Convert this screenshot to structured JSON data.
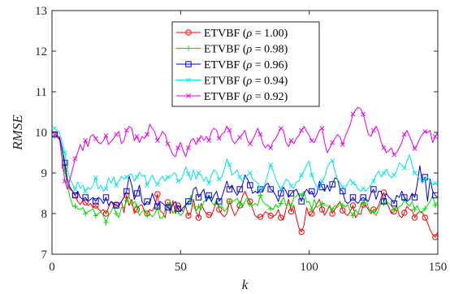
{
  "chart_data": {
    "type": "line",
    "xlabel": "k",
    "ylabel": "RMSE",
    "xlim": [
      0,
      150
    ],
    "ylim": [
      7,
      13
    ],
    "xticks": [
      0,
      50,
      100,
      150
    ],
    "yticks": [
      7,
      8,
      9,
      10,
      11,
      12,
      13
    ],
    "grid": false,
    "legend_position": "top-center",
    "x_start": 1,
    "x_step": 1,
    "series": [
      {
        "name": "ETVBF (ρ = 1.00)",
        "label_prefix": "ETVBF (",
        "label_symbol": "ρ",
        "label_suffix": " = 1.00)",
        "color": "#ff0000",
        "marker": "circle",
        "values": [
          9.95,
          9.93,
          9.88,
          9.55,
          9.15,
          8.72,
          8.6,
          8.55,
          8.45,
          8.3,
          8.22,
          8.33,
          8.28,
          8.2,
          8.25,
          8.14,
          8.2,
          8.12,
          8.05,
          8.1,
          8.0,
          8.15,
          8.3,
          8.2,
          8.22,
          8.18,
          8.3,
          8.02,
          8.45,
          8.2,
          8.35,
          8.0,
          8.1,
          8.2,
          8.22,
          8.04,
          8.0,
          8.1,
          8.06,
          8.2,
          8.48,
          8.07,
          8.02,
          7.9,
          8.28,
          8.0,
          8.32,
          8.0,
          8.2,
          8.12,
          8.05,
          8.18,
          7.95,
          8.02,
          8.35,
          8.06,
          7.9,
          8.25,
          8.1,
          8.0,
          7.97,
          7.95,
          8.12,
          8.32,
          8.1,
          7.98,
          7.92,
          8.0,
          8.3,
          8.12,
          7.95,
          8.05,
          8.2,
          8.42,
          8.55,
          8.4,
          8.3,
          8.12,
          7.95,
          7.9,
          7.92,
          7.95,
          8.05,
          8.0,
          7.95,
          7.93,
          7.97,
          8.1,
          7.9,
          7.85,
          8.12,
          8.35,
          8.05,
          8.2,
          7.9,
          7.65,
          7.55,
          7.72,
          8.15,
          7.95,
          8.0,
          8.12,
          8.25,
          8.35,
          8.1,
          7.96,
          8.08,
          8.2,
          8.0,
          8.1,
          8.22,
          8.3,
          8.08,
          8.0,
          7.95,
          8.06,
          8.2,
          7.9,
          8.0,
          7.98,
          8.22,
          8.2,
          8.1,
          8.0,
          8.1,
          8.08,
          8.2,
          8.4,
          8.52,
          8.3,
          8.15,
          8.0,
          8.05,
          8.2,
          7.95,
          7.9,
          8.02,
          8.18,
          8.1,
          8.08,
          7.9,
          8.0,
          8.05,
          8.02,
          7.9,
          7.78,
          7.6,
          7.48,
          7.42,
          7.55
        ]
      },
      {
        "name": "ETVBF (ρ = 0.98)",
        "label_prefix": "ETVBF (",
        "label_symbol": "ρ",
        "label_suffix": " = 0.98)",
        "color": "#00dd00",
        "marker": "plus",
        "values": [
          9.9,
          9.88,
          9.82,
          9.5,
          9.05,
          8.7,
          8.4,
          8.2,
          8.18,
          8.12,
          8.1,
          8.15,
          8.0,
          8.05,
          8.08,
          8.12,
          7.95,
          8.0,
          8.05,
          7.95,
          7.78,
          7.95,
          8.05,
          8.2,
          8.0,
          7.9,
          8.15,
          8.15,
          8.32,
          8.42,
          8.2,
          8.3,
          8.18,
          7.95,
          8.05,
          8.1,
          7.95,
          8.0,
          7.92,
          8.0,
          8.15,
          7.88,
          7.9,
          8.08,
          8.2,
          8.3,
          8.0,
          8.12,
          8.05,
          7.95,
          8.02,
          8.25,
          8.25,
          8.45,
          8.2,
          8.05,
          8.18,
          8.1,
          8.3,
          8.32,
          8.42,
          8.3,
          8.2,
          8.35,
          8.15,
          8.2,
          8.05,
          8.12,
          8.3,
          8.3,
          8.32,
          8.38,
          8.25,
          8.15,
          8.3,
          8.4,
          8.22,
          8.2,
          8.25,
          8.2,
          8.45,
          8.3,
          8.22,
          8.2,
          8.12,
          8.1,
          8.22,
          8.15,
          8.25,
          8.4,
          8.2,
          8.25,
          8.2,
          8.4,
          8.42,
          8.5,
          8.45,
          8.55,
          8.28,
          8.3,
          8.1,
          8.35,
          8.15,
          8.2,
          8.25,
          8.2,
          8.2,
          8.15,
          8.1,
          8.2,
          8.15,
          8.28,
          8.2,
          8.16,
          8.22,
          8.05,
          7.95,
          8.1,
          8.0,
          8.2,
          8.25,
          8.4,
          8.15,
          8.05,
          8.05,
          7.95,
          8.1,
          8.28,
          8.25,
          8.3,
          8.25,
          8.2,
          8.1,
          8.05,
          8.18,
          8.2,
          8.35,
          8.25,
          8.18,
          8.3,
          8.1,
          8.2,
          8.05,
          8.05,
          8.12,
          8.2,
          8.3,
          8.45,
          8.2,
          8.3
        ]
      },
      {
        "name": "ETVBF (ρ = 0.96)",
        "label_prefix": "ETVBF (",
        "label_symbol": "ρ",
        "label_suffix": " = 0.96)",
        "color": "#0000dd",
        "marker": "square",
        "values": [
          9.95,
          9.9,
          9.85,
          9.6,
          9.25,
          8.85,
          8.65,
          8.55,
          8.45,
          8.55,
          8.4,
          8.35,
          8.4,
          8.3,
          8.35,
          8.4,
          8.3,
          8.4,
          8.35,
          8.25,
          8.4,
          8.2,
          8.3,
          8.25,
          8.2,
          8.2,
          8.3,
          8.4,
          8.55,
          8.92,
          8.7,
          8.35,
          8.5,
          8.7,
          8.3,
          8.2,
          8.3,
          8.25,
          8.5,
          8.32,
          8.18,
          8.3,
          8.25,
          8.2,
          8.15,
          8.1,
          8.22,
          8.3,
          8.12,
          8.05,
          8.15,
          8.2,
          8.3,
          8.3,
          8.6,
          8.65,
          8.4,
          8.5,
          8.6,
          8.3,
          8.45,
          8.3,
          8.45,
          8.55,
          8.3,
          8.4,
          8.6,
          8.8,
          8.6,
          8.7,
          8.55,
          8.45,
          8.6,
          8.7,
          8.95,
          8.85,
          8.7,
          8.5,
          8.55,
          8.5,
          8.6,
          8.55,
          8.7,
          8.75,
          8.6,
          8.55,
          8.45,
          8.3,
          8.5,
          8.65,
          8.55,
          8.4,
          8.5,
          8.55,
          8.6,
          8.45,
          8.3,
          8.5,
          8.6,
          8.5,
          8.55,
          8.4,
          8.5,
          8.8,
          8.65,
          8.55,
          8.7,
          8.55,
          8.72,
          8.88,
          8.85,
          8.6,
          8.55,
          8.3,
          8.25,
          8.3,
          8.4,
          8.3,
          8.25,
          8.35,
          8.4,
          8.35,
          8.3,
          8.5,
          8.6,
          8.35,
          8.55,
          8.55,
          8.3,
          8.5,
          8.4,
          8.35,
          8.25,
          8.45,
          8.4,
          8.55,
          8.4,
          8.3,
          8.35,
          8.5,
          8.4,
          8.72,
          9.18,
          8.75,
          8.9,
          8.3,
          8.85,
          8.55,
          8.45,
          8.4
        ]
      },
      {
        "name": "ETVBF (ρ = 0.94)",
        "label_prefix": "ETVBF (",
        "label_symbol": "ρ",
        "label_suffix": " = 0.94)",
        "color": "#00e5e5",
        "marker": "x",
        "values": [
          10.1,
          10.05,
          9.98,
          9.75,
          9.5,
          9.1,
          8.85,
          8.72,
          8.6,
          8.78,
          8.62,
          8.7,
          8.55,
          8.65,
          8.6,
          8.7,
          8.88,
          8.6,
          8.7,
          8.55,
          8.62,
          8.88,
          8.75,
          8.9,
          8.7,
          8.8,
          8.92,
          8.85,
          8.9,
          8.95,
          8.98,
          8.8,
          8.9,
          9.02,
          8.92,
          8.95,
          8.7,
          8.82,
          8.95,
          8.8,
          8.72,
          8.85,
          8.92,
          8.8,
          8.9,
          8.9,
          8.98,
          9.0,
          8.8,
          8.82,
          8.95,
          9.15,
          8.98,
          8.82,
          9.08,
          8.85,
          9.0,
          8.95,
          8.8,
          8.9,
          8.75,
          8.95,
          9.08,
          9.02,
          8.85,
          8.9,
          9.1,
          9.35,
          9.2,
          8.95,
          9.0,
          9.08,
          8.9,
          8.8,
          8.85,
          8.95,
          9.0,
          8.85,
          8.8,
          8.75,
          8.62,
          8.6,
          8.75,
          9.0,
          9.2,
          9.05,
          8.85,
          8.72,
          8.6,
          8.72,
          8.85,
          8.8,
          8.68,
          8.62,
          8.78,
          8.8,
          8.95,
          9.05,
          9.2,
          9.3,
          8.95,
          8.78,
          8.65,
          8.6,
          8.8,
          8.9,
          9.15,
          9.25,
          9.3,
          9.05,
          8.85,
          8.75,
          8.65,
          8.62,
          8.75,
          8.85,
          8.75,
          8.72,
          8.6,
          8.55,
          8.62,
          8.55,
          8.62,
          8.72,
          8.8,
          8.95,
          9.05,
          8.9,
          9.0,
          9.1,
          8.95,
          8.88,
          8.95,
          9.05,
          9.25,
          9.2,
          9.12,
          9.3,
          9.45,
          9.2,
          9.0,
          8.95,
          8.85,
          8.75,
          8.85,
          8.9,
          8.8,
          8.72,
          8.75,
          8.72
        ]
      },
      {
        "name": "ETVBF (ρ = 0.92)",
        "label_prefix": "ETVBF (",
        "label_symbol": "ρ",
        "label_suffix": " = 0.92)",
        "color": "#e800e8",
        "marker": "x",
        "values": [
          9.95,
          9.9,
          9.8,
          9.3,
          8.8,
          8.6,
          8.85,
          9.1,
          9.35,
          9.5,
          9.7,
          9.55,
          9.8,
          9.65,
          9.9,
          9.95,
          9.85,
          9.75,
          9.72,
          9.8,
          9.92,
          9.7,
          9.78,
          9.85,
          9.95,
          10.02,
          9.72,
          9.8,
          10.05,
          10.15,
          10.1,
          9.8,
          9.9,
          9.75,
          9.9,
          9.85,
          9.95,
          10.2,
          10.1,
          10.0,
          9.8,
          9.9,
          10.02,
          9.95,
          9.72,
          9.6,
          9.45,
          9.4,
          9.62,
          9.75,
          9.55,
          9.4,
          9.62,
          9.8,
          9.85,
          9.7,
          9.82,
          9.92,
          9.8,
          9.9,
          9.8,
          10.02,
          10.1,
          10.05,
          9.85,
          9.95,
          10.0,
          10.15,
          10.05,
          9.82,
          9.72,
          9.8,
          9.88,
          9.95,
          10.05,
          9.8,
          9.72,
          9.82,
          9.95,
          10.1,
          9.95,
          9.72,
          9.62,
          9.7,
          9.62,
          9.78,
          9.85,
          9.98,
          10.1,
          10.05,
          9.75,
          9.65,
          9.8,
          9.72,
          9.85,
          9.92,
          10.05,
          10.15,
          10.02,
          9.92,
          9.8,
          9.75,
          9.9,
          10.05,
          10.1,
          9.75,
          9.5,
          9.62,
          9.75,
          9.85,
          9.95,
          9.88,
          9.7,
          9.9,
          10.05,
          10.2,
          10.45,
          10.55,
          10.62,
          10.58,
          10.45,
          10.2,
          9.95,
          9.9,
          10.05,
          10.15,
          10.0,
          9.75,
          9.62,
          9.5,
          9.55,
          9.62,
          9.45,
          9.5,
          9.62,
          9.75,
          9.95,
          10.05,
          9.9,
          9.75,
          9.6,
          9.7,
          9.85,
          9.95,
          10.02,
          10.0,
          10.05,
          9.75,
          9.9,
          10.0
        ]
      }
    ]
  }
}
